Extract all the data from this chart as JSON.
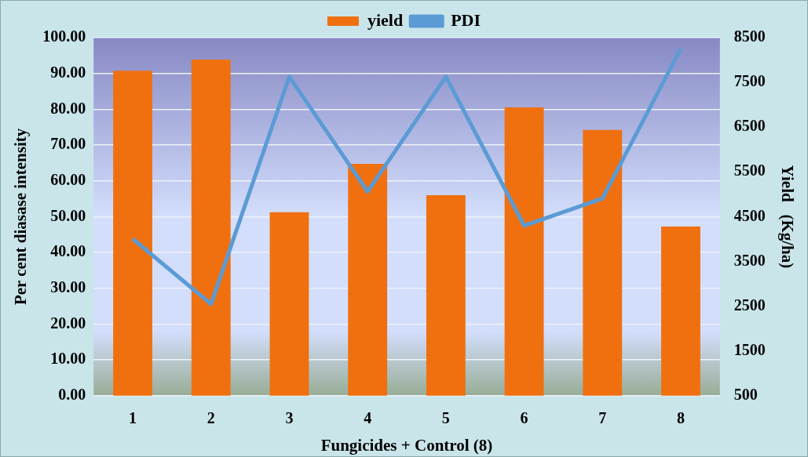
{
  "chart_data": {
    "type": "bar",
    "xlabel": "Fungicides + Control (8)",
    "ylabel": "Per cent diasase intensity",
    "y2label": "Yield   (Kg/ha)",
    "categories": [
      "1",
      "2",
      "3",
      "4",
      "5",
      "6",
      "7",
      "8"
    ],
    "series": [
      {
        "name": "yield",
        "axis": "y2",
        "color": "#f07010",
        "values": [
          7760,
          8010,
          4600,
          5680,
          4980,
          6940,
          6440,
          4280
        ]
      },
      {
        "name": "PDI",
        "type": "line",
        "axis": "y",
        "color": "#5b9bd5",
        "values": [
          43.8,
          25.6,
          89.1,
          57.0,
          89.1,
          47.5,
          55.1,
          96.9
        ]
      }
    ],
    "ylim": [
      0,
      100
    ],
    "yticks": [
      {
        "value": 0,
        "label": "0.00"
      },
      {
        "value": 10,
        "label": "10.00"
      },
      {
        "value": 20,
        "label": "20.00"
      },
      {
        "value": 30,
        "label": "30.00"
      },
      {
        "value": 40,
        "label": "40.00"
      },
      {
        "value": 50,
        "label": "50.00"
      },
      {
        "value": 60,
        "label": "60.00"
      },
      {
        "value": 70,
        "label": "70.00"
      },
      {
        "value": 80,
        "label": "80.00"
      },
      {
        "value": 90,
        "label": "90.00"
      },
      {
        "value": 100,
        "label": "100.00"
      }
    ],
    "y2lim": [
      500,
      8500
    ],
    "y2ticks": [
      500,
      1500,
      2500,
      3500,
      4500,
      5500,
      6500,
      7500,
      8500
    ],
    "grid": "y",
    "legend": "top",
    "marker": "none",
    "line_style": "solid"
  }
}
